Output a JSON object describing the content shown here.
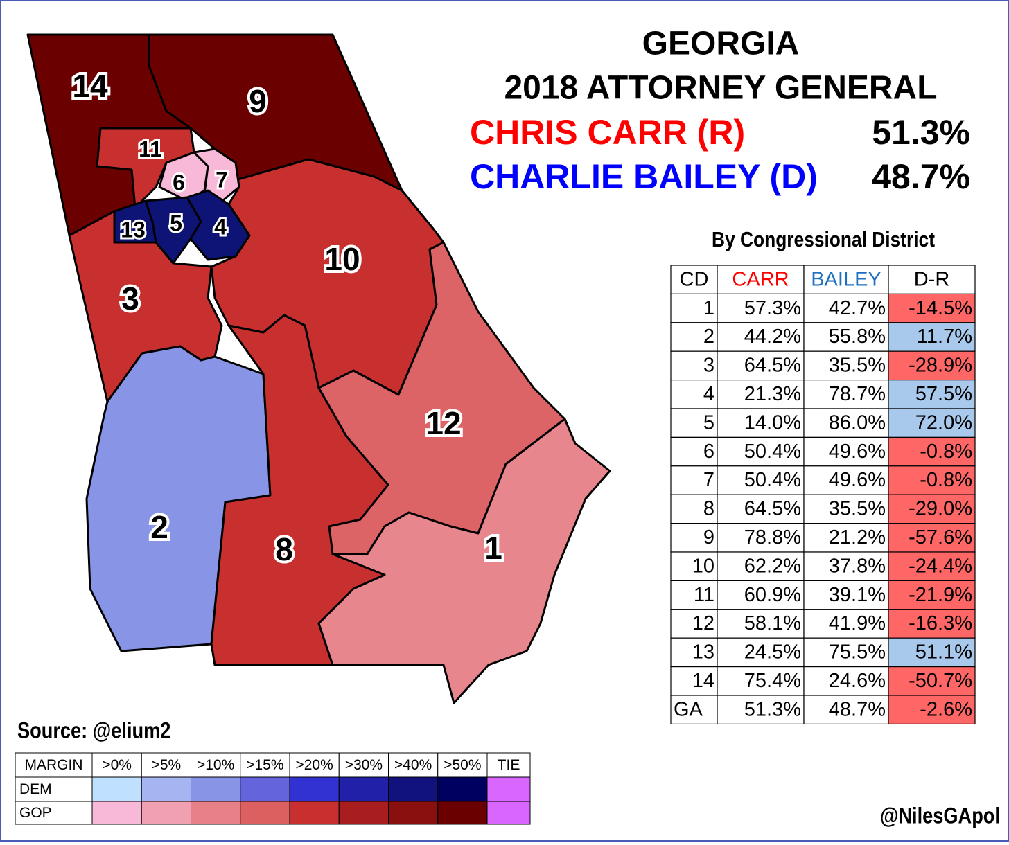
{
  "header": {
    "title": "GEORGIA",
    "subtitle": "2018 ATTORNEY GENERAL"
  },
  "candidates": [
    {
      "name": "CHRIS CARR (R)",
      "pct": "51.3%",
      "color": "#ff0000"
    },
    {
      "name": "CHARLIE BAILEY (D)",
      "pct": "48.7%",
      "color": "#0000ff"
    }
  ],
  "map": {
    "districts": [
      "14",
      "9",
      "11",
      "6",
      "7",
      "13",
      "5",
      "4",
      "10",
      "3",
      "12",
      "2",
      "8",
      "1"
    ]
  },
  "table": {
    "title": "By Congressional District",
    "header": [
      "CD",
      "CARR",
      "BAILEY",
      "D-R"
    ],
    "header_colors": [
      "#000000",
      "#ff0000",
      "#1f6fc0",
      "#000000"
    ],
    "rows": [
      [
        "1",
        "57.3%",
        "42.7%",
        "-14.5%"
      ],
      [
        "2",
        "44.2%",
        "55.8%",
        "11.7%"
      ],
      [
        "3",
        "64.5%",
        "35.5%",
        "-28.9%"
      ],
      [
        "4",
        "21.3%",
        "78.7%",
        "57.5%"
      ],
      [
        "5",
        "14.0%",
        "86.0%",
        "72.0%"
      ],
      [
        "6",
        "50.4%",
        "49.6%",
        "-0.8%"
      ],
      [
        "7",
        "50.4%",
        "49.6%",
        "-0.8%"
      ],
      [
        "8",
        "64.5%",
        "35.5%",
        "-29.0%"
      ],
      [
        "9",
        "78.8%",
        "21.2%",
        "-57.6%"
      ],
      [
        "10",
        "62.2%",
        "37.8%",
        "-24.4%"
      ],
      [
        "11",
        "60.9%",
        "39.1%",
        "-21.9%"
      ],
      [
        "12",
        "58.1%",
        "41.9%",
        "-16.3%"
      ],
      [
        "13",
        "24.5%",
        "75.5%",
        "51.1%"
      ],
      [
        "14",
        "75.4%",
        "24.6%",
        "-50.7%"
      ],
      [
        "GA",
        "51.3%",
        "48.7%",
        "-2.6%"
      ]
    ]
  },
  "source": "Source: @elium2",
  "legend": {
    "header": [
      "MARGIN",
      ">0%",
      ">5%",
      ">10%",
      ">15%",
      ">20%",
      ">30%",
      ">40%",
      ">50%",
      "TIE"
    ],
    "rows": [
      {
        "label": "DEM",
        "colors": [
          "#bfe0ff",
          "#a6b4f2",
          "#8894e6",
          "#6464dc",
          "#3232d2",
          "#2020a8",
          "#12127f",
          "#000060",
          "#d966ff"
        ]
      },
      {
        "label": "GOP",
        "colors": [
          "#f8b8d8",
          "#f0a0b0",
          "#e8808a",
          "#dc6060",
          "#c83030",
          "#a81e1e",
          "#8a1010",
          "#6a0000",
          "#d966ff"
        ]
      }
    ]
  },
  "credit": "@NilesGApol"
}
